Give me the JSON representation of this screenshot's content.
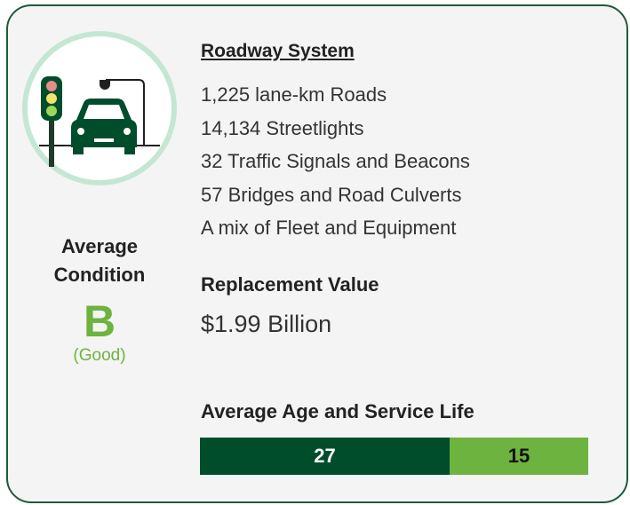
{
  "condition": {
    "label": "Average Condition",
    "grade": "B",
    "description": "(Good)"
  },
  "roadway": {
    "title": "Roadway System",
    "items": [
      "1,225 lane-km Roads",
      "14,134 Streetlights",
      "32 Traffic Signals and Beacons",
      "57 Bridges and Road Culverts",
      "A mix of Fleet and Equipment"
    ]
  },
  "replacement": {
    "title": "Replacement Value",
    "value": "$1.99 Billion"
  },
  "age": {
    "title": "Average Age and Service Life",
    "segments": [
      {
        "value": 27,
        "color": "#004d2c"
      },
      {
        "value": 15,
        "color": "#6db33f"
      }
    ]
  }
}
